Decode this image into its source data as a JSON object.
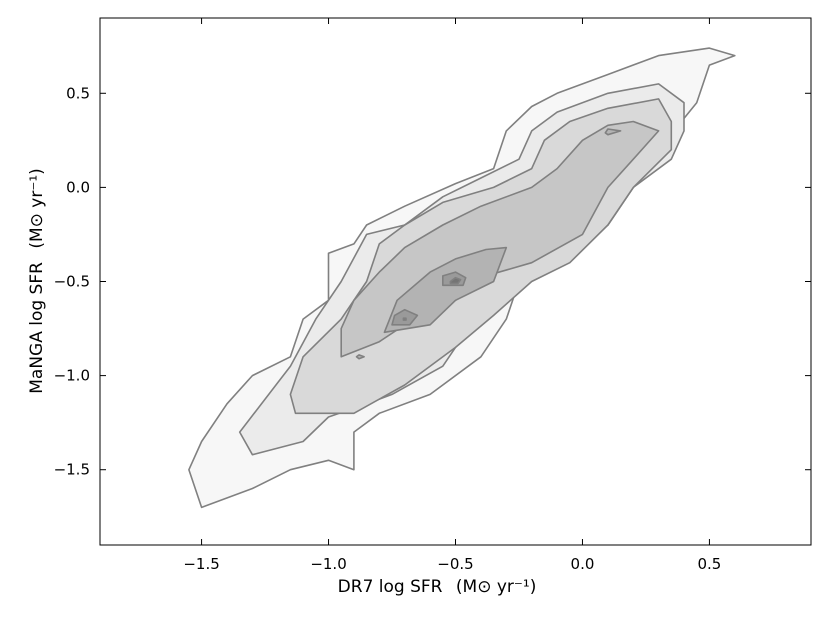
{
  "chart_data": {
    "type": "contour",
    "xlabel": "DR7 log SFR",
    "xlabel_unit": "(M⊙ yr⁻¹)",
    "ylabel": "MaNGA log SFR",
    "ylabel_unit": "(M⊙ yr⁻¹)",
    "xlim": [
      -1.9,
      0.9
    ],
    "ylim": [
      -1.9,
      0.9
    ],
    "xticks": [
      -1.5,
      -1.0,
      -0.5,
      0.0,
      0.5
    ],
    "xtick_labels": [
      "−1.5",
      "−1.0",
      "−0.5",
      "0.0",
      "0.5"
    ],
    "yticks": [
      -1.5,
      -1.0,
      -0.5,
      0.0,
      0.5
    ],
    "ytick_labels": [
      "−1.5",
      "−1.0",
      "−0.5",
      "0.0",
      "0.5"
    ],
    "grid": false,
    "levels": [
      {
        "level": 1,
        "fill": "#f7f7f7",
        "polygons": [
          [
            [
              -1.5,
              -1.7
            ],
            [
              -1.3,
              -1.6
            ],
            [
              -1.15,
              -1.5
            ],
            [
              -1.0,
              -1.45
            ],
            [
              -0.9,
              -1.5
            ],
            [
              -0.9,
              -1.3
            ],
            [
              -0.8,
              -1.2
            ],
            [
              -0.6,
              -1.1
            ],
            [
              -0.4,
              -0.9
            ],
            [
              -0.3,
              -0.7
            ],
            [
              -0.25,
              -0.5
            ],
            [
              -0.1,
              -0.4
            ],
            [
              0.1,
              -0.2
            ],
            [
              0.2,
              0.0
            ],
            [
              0.3,
              0.2
            ],
            [
              0.45,
              0.45
            ],
            [
              0.5,
              0.65
            ],
            [
              0.6,
              0.7
            ],
            [
              0.5,
              0.74
            ],
            [
              0.3,
              0.7
            ],
            [
              0.1,
              0.6
            ],
            [
              -0.1,
              0.5
            ],
            [
              -0.2,
              0.43
            ],
            [
              -0.3,
              0.3
            ],
            [
              -0.35,
              0.1
            ],
            [
              -0.5,
              0.02
            ],
            [
              -0.7,
              -0.1
            ],
            [
              -0.85,
              -0.2
            ],
            [
              -0.9,
              -0.3
            ],
            [
              -1.0,
              -0.35
            ],
            [
              -1.0,
              -0.6
            ],
            [
              -1.1,
              -0.7
            ],
            [
              -1.15,
              -0.9
            ],
            [
              -1.3,
              -1.0
            ],
            [
              -1.4,
              -1.15
            ],
            [
              -1.5,
              -1.35
            ],
            [
              -1.55,
              -1.5
            ],
            [
              -1.5,
              -1.7
            ]
          ]
        ]
      },
      {
        "level": 2,
        "fill": "#ebebeb",
        "polygons": [
          [
            [
              -1.3,
              -1.42
            ],
            [
              -1.1,
              -1.35
            ],
            [
              -1.0,
              -1.22
            ],
            [
              -0.85,
              -1.15
            ],
            [
              -0.75,
              -1.1
            ],
            [
              -0.55,
              -0.95
            ],
            [
              -0.45,
              -0.75
            ],
            [
              -0.3,
              -0.58
            ],
            [
              -0.15,
              -0.45
            ],
            [
              0.1,
              -0.2
            ],
            [
              0.2,
              0.0
            ],
            [
              0.35,
              0.15
            ],
            [
              0.4,
              0.3
            ],
            [
              0.4,
              0.45
            ],
            [
              0.3,
              0.55
            ],
            [
              0.1,
              0.5
            ],
            [
              -0.1,
              0.4
            ],
            [
              -0.2,
              0.3
            ],
            [
              -0.25,
              0.15
            ],
            [
              -0.4,
              0.05
            ],
            [
              -0.55,
              -0.05
            ],
            [
              -0.7,
              -0.2
            ],
            [
              -0.85,
              -0.25
            ],
            [
              -0.95,
              -0.5
            ],
            [
              -1.05,
              -0.7
            ],
            [
              -1.15,
              -0.95
            ],
            [
              -1.35,
              -1.3
            ],
            [
              -1.3,
              -1.42
            ]
          ]
        ]
      },
      {
        "level": 3,
        "fill": "#d9d9d9",
        "polygons": [
          [
            [
              -1.13,
              -1.2
            ],
            [
              -0.9,
              -1.2
            ],
            [
              -0.7,
              -1.05
            ],
            [
              -0.5,
              -0.85
            ],
            [
              -0.35,
              -0.68
            ],
            [
              -0.2,
              -0.5
            ],
            [
              -0.05,
              -0.4
            ],
            [
              0.1,
              -0.2
            ],
            [
              0.2,
              0.0
            ],
            [
              0.35,
              0.2
            ],
            [
              0.35,
              0.35
            ],
            [
              0.3,
              0.47
            ],
            [
              0.1,
              0.42
            ],
            [
              -0.05,
              0.35
            ],
            [
              -0.15,
              0.25
            ],
            [
              -0.2,
              0.1
            ],
            [
              -0.35,
              0.0
            ],
            [
              -0.55,
              -0.08
            ],
            [
              -0.7,
              -0.2
            ],
            [
              -0.8,
              -0.3
            ],
            [
              -0.85,
              -0.5
            ],
            [
              -0.95,
              -0.7
            ],
            [
              -1.1,
              -0.9
            ],
            [
              -1.15,
              -1.1
            ],
            [
              -1.13,
              -1.2
            ]
          ]
        ]
      },
      {
        "level": 4,
        "fill": "#c6c6c6",
        "polygons": [
          [
            [
              -0.95,
              -0.9
            ],
            [
              -0.8,
              -0.82
            ],
            [
              -0.7,
              -0.73
            ],
            [
              -0.5,
              -0.6
            ],
            [
              -0.38,
              -0.47
            ],
            [
              -0.2,
              -0.4
            ],
            [
              0.0,
              -0.25
            ],
            [
              0.1,
              0.0
            ],
            [
              0.2,
              0.15
            ],
            [
              0.3,
              0.3
            ],
            [
              0.2,
              0.35
            ],
            [
              0.1,
              0.33
            ],
            [
              0.0,
              0.25
            ],
            [
              -0.1,
              0.1
            ],
            [
              -0.2,
              0.0
            ],
            [
              -0.4,
              -0.1
            ],
            [
              -0.55,
              -0.2
            ],
            [
              -0.7,
              -0.32
            ],
            [
              -0.8,
              -0.45
            ],
            [
              -0.9,
              -0.6
            ],
            [
              -0.95,
              -0.75
            ],
            [
              -0.95,
              -0.9
            ]
          ]
        ]
      },
      {
        "level": 5,
        "fill": "#b3b3b3",
        "polygons": [
          [
            [
              -0.78,
              -0.77
            ],
            [
              -0.6,
              -0.73
            ],
            [
              -0.5,
              -0.6
            ],
            [
              -0.35,
              -0.5
            ],
            [
              -0.3,
              -0.32
            ],
            [
              -0.38,
              -0.33
            ],
            [
              -0.5,
              -0.38
            ],
            [
              -0.6,
              -0.45
            ],
            [
              -0.73,
              -0.6
            ],
            [
              -0.78,
              -0.77
            ]
          ],
          [
            [
              -0.88,
              -0.91
            ],
            [
              -0.86,
              -0.9
            ],
            [
              -0.88,
              -0.89
            ],
            [
              -0.89,
              -0.9
            ],
            [
              -0.88,
              -0.91
            ]
          ],
          [
            [
              0.1,
              0.28
            ],
            [
              0.15,
              0.3
            ],
            [
              0.1,
              0.31
            ],
            [
              0.09,
              0.29
            ],
            [
              0.1,
              0.28
            ]
          ]
        ]
      },
      {
        "level": 6,
        "fill": "#9a9a9a",
        "polygons": [
          [
            [
              -0.75,
              -0.73
            ],
            [
              -0.68,
              -0.73
            ],
            [
              -0.65,
              -0.68
            ],
            [
              -0.7,
              -0.65
            ],
            [
              -0.74,
              -0.68
            ],
            [
              -0.75,
              -0.73
            ]
          ],
          [
            [
              -0.55,
              -0.52
            ],
            [
              -0.47,
              -0.52
            ],
            [
              -0.46,
              -0.48
            ],
            [
              -0.5,
              -0.45
            ],
            [
              -0.55,
              -0.47
            ],
            [
              -0.55,
              -0.52
            ]
          ]
        ]
      },
      {
        "level": 7,
        "fill": "#747474",
        "polygons": [
          [
            [
              -0.52,
              -0.51
            ],
            [
              -0.49,
              -0.51
            ],
            [
              -0.48,
              -0.49
            ],
            [
              -0.5,
              -0.48
            ],
            [
              -0.52,
              -0.5
            ],
            [
              -0.52,
              -0.51
            ]
          ],
          [
            [
              -0.705,
              -0.705
            ],
            [
              -0.695,
              -0.705
            ],
            [
              -0.695,
              -0.695
            ],
            [
              -0.705,
              -0.695
            ],
            [
              -0.705,
              -0.705
            ]
          ]
        ]
      }
    ]
  }
}
